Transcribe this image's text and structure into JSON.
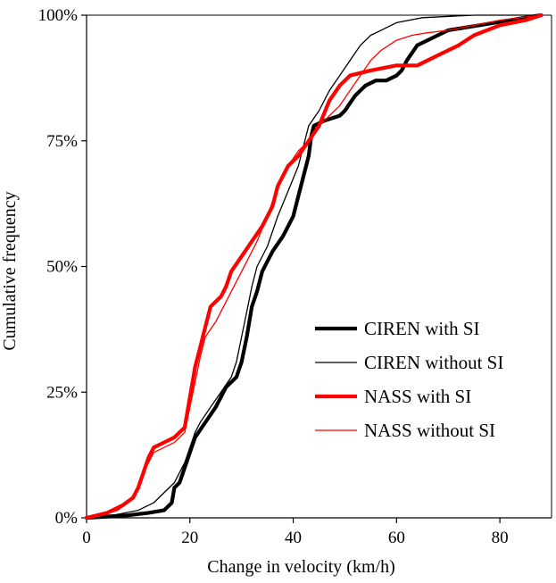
{
  "chart_data": {
    "type": "line",
    "title": "",
    "xlabel": "Change in velocity (km/h)",
    "ylabel": "Cumulative frequency",
    "xlim": [
      0,
      90
    ],
    "ylim": [
      0,
      100
    ],
    "x_ticks": [
      0,
      20,
      40,
      60,
      80
    ],
    "x_tick_labels": [
      "0",
      "20",
      "40",
      "60",
      "80"
    ],
    "y_ticks": [
      0,
      25,
      50,
      75,
      100
    ],
    "y_tick_labels": [
      "0%",
      "25%",
      "50%",
      "75%",
      "100%"
    ],
    "grid": false,
    "legend_position": "bottom-right",
    "series": [
      {
        "name": "CIREN with SI",
        "color": "#000000",
        "style": "thick",
        "points": [
          [
            0,
            0
          ],
          [
            8,
            0.5
          ],
          [
            12,
            1
          ],
          [
            15,
            1.5
          ],
          [
            16.5,
            3
          ],
          [
            17,
            6
          ],
          [
            18,
            7
          ],
          [
            19,
            10
          ],
          [
            20,
            13
          ],
          [
            21,
            16
          ],
          [
            23,
            19
          ],
          [
            25,
            22
          ],
          [
            27,
            26
          ],
          [
            29,
            28
          ],
          [
            30,
            31
          ],
          [
            31,
            36
          ],
          [
            32,
            42
          ],
          [
            33,
            45
          ],
          [
            34,
            49
          ],
          [
            36,
            53
          ],
          [
            38,
            56
          ],
          [
            40,
            60
          ],
          [
            41,
            64
          ],
          [
            42,
            68
          ],
          [
            43,
            72
          ],
          [
            43.5,
            76
          ],
          [
            44,
            78
          ],
          [
            46,
            79
          ],
          [
            49,
            80
          ],
          [
            50,
            81
          ],
          [
            52,
            84
          ],
          [
            54,
            86
          ],
          [
            56,
            87
          ],
          [
            58,
            87
          ],
          [
            60,
            88
          ],
          [
            61,
            89
          ],
          [
            62,
            91
          ],
          [
            64,
            94
          ],
          [
            66,
            95
          ],
          [
            70,
            97
          ],
          [
            76,
            98
          ],
          [
            82,
            99
          ],
          [
            88,
            100
          ]
        ]
      },
      {
        "name": "CIREN without SI",
        "color": "#000000",
        "style": "thin",
        "points": [
          [
            0,
            0
          ],
          [
            5,
            0.5
          ],
          [
            10,
            1.5
          ],
          [
            13,
            3
          ],
          [
            15,
            5
          ],
          [
            17,
            7
          ],
          [
            18,
            9
          ],
          [
            19,
            11
          ],
          [
            20,
            14
          ],
          [
            21,
            17
          ],
          [
            22,
            19
          ],
          [
            24,
            22
          ],
          [
            26,
            25
          ],
          [
            28,
            28
          ],
          [
            29,
            31
          ],
          [
            30,
            36
          ],
          [
            31,
            41
          ],
          [
            32,
            46
          ],
          [
            33,
            50
          ],
          [
            35,
            54
          ],
          [
            37,
            60
          ],
          [
            39,
            65
          ],
          [
            41,
            70
          ],
          [
            42,
            74
          ],
          [
            43,
            78
          ],
          [
            45,
            81
          ],
          [
            47,
            85
          ],
          [
            49,
            88
          ],
          [
            51,
            91
          ],
          [
            53,
            94
          ],
          [
            55,
            96
          ],
          [
            57,
            97
          ],
          [
            60,
            98.5
          ],
          [
            65,
            99.5
          ],
          [
            75,
            100
          ],
          [
            88,
            100
          ]
        ]
      },
      {
        "name": "NASS with SI",
        "color": "#ff0000",
        "style": "thick",
        "points": [
          [
            0,
            0
          ],
          [
            4,
            1
          ],
          [
            7,
            2.5
          ],
          [
            9,
            4
          ],
          [
            10,
            6
          ],
          [
            11,
            9
          ],
          [
            12,
            12
          ],
          [
            13,
            14
          ],
          [
            15,
            15
          ],
          [
            17,
            16
          ],
          [
            19,
            18
          ],
          [
            20,
            24
          ],
          [
            21,
            30
          ],
          [
            22,
            34
          ],
          [
            23,
            38
          ],
          [
            24,
            42
          ],
          [
            25,
            43
          ],
          [
            26,
            44
          ],
          [
            27,
            46
          ],
          [
            28,
            49
          ],
          [
            30,
            52
          ],
          [
            32,
            55
          ],
          [
            34,
            58
          ],
          [
            36,
            62
          ],
          [
            37,
            66
          ],
          [
            39,
            70
          ],
          [
            41,
            72
          ],
          [
            43,
            75
          ],
          [
            45,
            78
          ],
          [
            47,
            83
          ],
          [
            49,
            86
          ],
          [
            51,
            88
          ],
          [
            55,
            89
          ],
          [
            60,
            90
          ],
          [
            64,
            90
          ],
          [
            66,
            91
          ],
          [
            68,
            92
          ],
          [
            70,
            93
          ],
          [
            72,
            94
          ],
          [
            75,
            96
          ],
          [
            80,
            98
          ],
          [
            85,
            99
          ],
          [
            88,
            100
          ]
        ]
      },
      {
        "name": "NASS without SI",
        "color": "#ff0000",
        "style": "thin",
        "points": [
          [
            0,
            0
          ],
          [
            3,
            0.5
          ],
          [
            6,
            1.5
          ],
          [
            8,
            3
          ],
          [
            10,
            6
          ],
          [
            11,
            9
          ],
          [
            12,
            11
          ],
          [
            13,
            13
          ],
          [
            15,
            14
          ],
          [
            17,
            15
          ],
          [
            19,
            17
          ],
          [
            20,
            22
          ],
          [
            21,
            27
          ],
          [
            22,
            32
          ],
          [
            23,
            36
          ],
          [
            25,
            39
          ],
          [
            27,
            43
          ],
          [
            29,
            47
          ],
          [
            31,
            51
          ],
          [
            33,
            55
          ],
          [
            35,
            60
          ],
          [
            37,
            66
          ],
          [
            39,
            70
          ],
          [
            41,
            73
          ],
          [
            43,
            75
          ],
          [
            45,
            78
          ],
          [
            47,
            80
          ],
          [
            49,
            82
          ],
          [
            51,
            85
          ],
          [
            53,
            88
          ],
          [
            55,
            91
          ],
          [
            57,
            93
          ],
          [
            60,
            95
          ],
          [
            63,
            96
          ],
          [
            66,
            96.5
          ],
          [
            70,
            97
          ],
          [
            75,
            98
          ],
          [
            80,
            99
          ],
          [
            88,
            100
          ]
        ]
      }
    ]
  }
}
